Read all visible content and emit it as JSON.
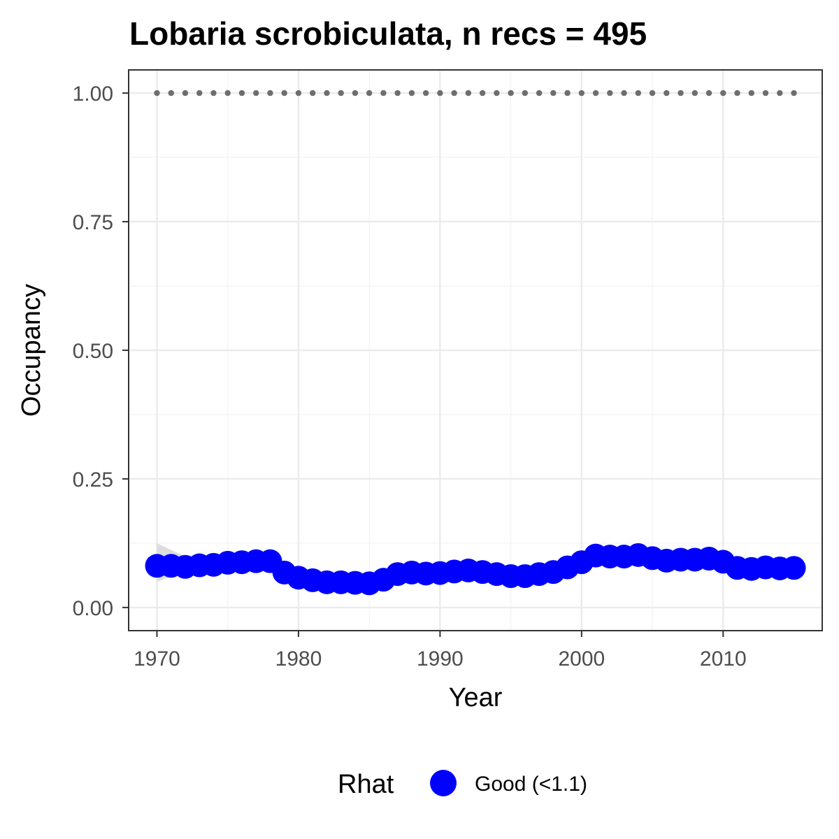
{
  "chart_data": {
    "type": "scatter",
    "title": "Lobaria scrobiculata, n recs = 495",
    "xlabel": "Year",
    "ylabel": "Occupancy",
    "xlim": [
      1968,
      2017
    ],
    "ylim": [
      -0.045,
      1.045
    ],
    "x_ticks": [
      1970,
      1980,
      1990,
      2000,
      2010
    ],
    "x_tick_labels": [
      "1970",
      "1980",
      "1990",
      "2000",
      "2010"
    ],
    "y_ticks": [
      0,
      0.25,
      0.5,
      0.75,
      1
    ],
    "y_tick_labels": [
      "0.00",
      "0.25",
      "0.50",
      "0.75",
      "1.00"
    ],
    "grid": true,
    "legend": {
      "title": "Rhat",
      "placement": "bottom",
      "entries": [
        {
          "label": "Good (<1.1)",
          "color": "#0000ff"
        }
      ]
    },
    "reference_line": {
      "y": 1.0,
      "style": "dotted",
      "color": "#6e6e6e"
    },
    "series": [
      {
        "name": "Good (<1.1)",
        "color": "#0000ff",
        "x": [
          1970,
          1971,
          1972,
          1973,
          1974,
          1975,
          1976,
          1977,
          1978,
          1979,
          1980,
          1981,
          1982,
          1983,
          1984,
          1985,
          1986,
          1987,
          1988,
          1989,
          1990,
          1991,
          1992,
          1993,
          1994,
          1995,
          1996,
          1997,
          1998,
          1999,
          2000,
          2001,
          2002,
          2003,
          2004,
          2005,
          2006,
          2007,
          2008,
          2009,
          2010,
          2011,
          2012,
          2013,
          2014,
          2015
        ],
        "y": [
          0.081,
          0.081,
          0.079,
          0.082,
          0.083,
          0.087,
          0.088,
          0.09,
          0.09,
          0.068,
          0.058,
          0.053,
          0.049,
          0.049,
          0.048,
          0.047,
          0.054,
          0.065,
          0.068,
          0.066,
          0.067,
          0.07,
          0.072,
          0.069,
          0.065,
          0.061,
          0.061,
          0.065,
          0.069,
          0.078,
          0.088,
          0.101,
          0.099,
          0.099,
          0.102,
          0.096,
          0.091,
          0.093,
          0.093,
          0.095,
          0.089,
          0.077,
          0.075,
          0.078,
          0.076,
          0.077
        ],
        "ci_lower": [
          0.05,
          0.06,
          0.065,
          0.07,
          0.073,
          0.078,
          0.08,
          0.082,
          0.08,
          0.06,
          0.05,
          0.045,
          0.042,
          0.042,
          0.041,
          0.04,
          0.046,
          0.057,
          0.06,
          0.058,
          0.059,
          0.061,
          0.063,
          0.061,
          0.058,
          0.054,
          0.054,
          0.058,
          0.062,
          0.07,
          0.08,
          0.092,
          0.09,
          0.09,
          0.093,
          0.088,
          0.083,
          0.085,
          0.085,
          0.087,
          0.081,
          0.069,
          0.068,
          0.071,
          0.069,
          0.07
        ],
        "ci_upper": [
          0.125,
          0.112,
          0.1,
          0.098,
          0.096,
          0.098,
          0.1,
          0.103,
          0.103,
          0.08,
          0.068,
          0.063,
          0.058,
          0.058,
          0.057,
          0.056,
          0.064,
          0.076,
          0.08,
          0.079,
          0.081,
          0.085,
          0.087,
          0.082,
          0.076,
          0.071,
          0.071,
          0.075,
          0.079,
          0.088,
          0.098,
          0.112,
          0.11,
          0.11,
          0.113,
          0.106,
          0.101,
          0.103,
          0.103,
          0.105,
          0.099,
          0.087,
          0.085,
          0.088,
          0.086,
          0.087
        ]
      }
    ]
  }
}
